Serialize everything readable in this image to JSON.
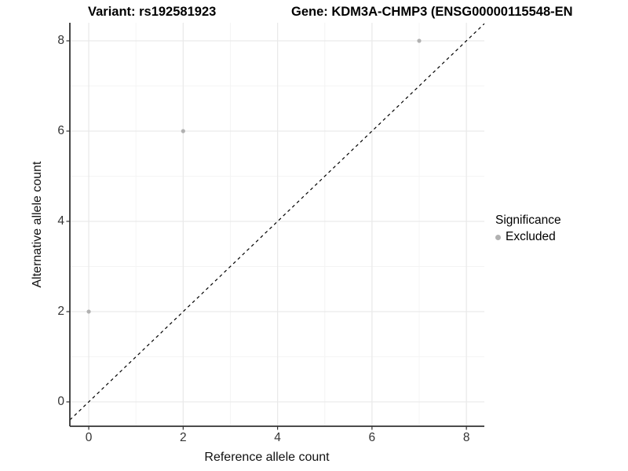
{
  "titles": {
    "variant": "Variant: rs192581923",
    "gene": "Gene: KDM3A-CHMP3 (ENSG00000115548-EN"
  },
  "legend": {
    "title": "Significance",
    "items": [
      {
        "label": "Excluded",
        "color": "#b1b1b1"
      }
    ]
  },
  "chart_data": {
    "type": "scatter",
    "xlabel": "Reference allele count",
    "ylabel": "Alternative allele count",
    "x_ticks": [
      0,
      2,
      4,
      6,
      8
    ],
    "y_ticks": [
      0,
      2,
      4,
      6,
      8
    ],
    "x_minor_ticks": [
      1,
      3,
      5,
      7
    ],
    "y_minor_ticks": [
      1,
      3,
      5,
      7
    ],
    "xlim": [
      -0.4,
      8.38
    ],
    "ylim": [
      -0.54,
      8.4
    ],
    "grid": true,
    "legend_position": "right",
    "series": [
      {
        "name": "Excluded",
        "color": "#b1b1b1",
        "point_radius": 2.6,
        "points": [
          {
            "x": 0,
            "y": 2
          },
          {
            "x": 2,
            "y": 6
          },
          {
            "x": 7,
            "y": 8
          }
        ]
      }
    ],
    "reference_line": {
      "type": "identity",
      "style": "dashed",
      "color": "#000000"
    }
  },
  "colors": {
    "background": "#ffffff",
    "grid_major": "#e9e9e9",
    "grid_minor": "#f4f4f4",
    "axis_line": "#333333",
    "tick_label": "#333333",
    "point": "#b1b1b1"
  }
}
